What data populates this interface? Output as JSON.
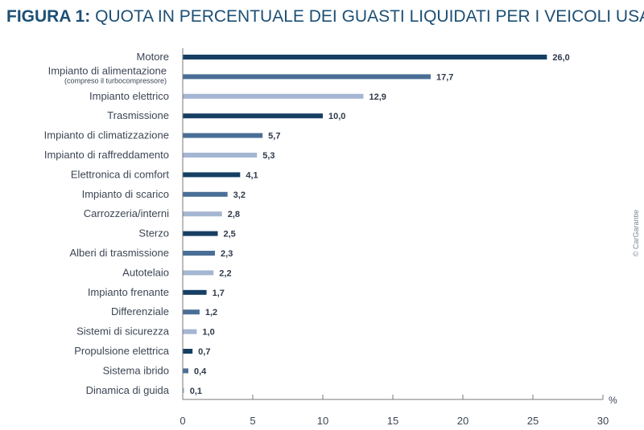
{
  "header": {
    "figure_label": "FIGURA 1:",
    "title": "QUOTA IN PERCENTUALE DEI GUASTI LIQUIDATI PER I VEICOLI USATI"
  },
  "credit": "© CarGarantie",
  "colors": {
    "title": "#1c4f74",
    "bar_dark": "#163f63",
    "bar_mid": "#4a6f96",
    "bar_light": "#a4b6d1",
    "axis": "#7a7a7a"
  },
  "chart_data": {
    "type": "bar",
    "orientation": "horizontal",
    "title": "QUOTA IN PERCENTUALE DEI GUASTI LIQUIDATI PER I VEICOLI USATI",
    "xlabel": "%",
    "ylabel": "",
    "xlim": [
      0,
      30
    ],
    "xticks": [
      0,
      5,
      10,
      15,
      20,
      25,
      30
    ],
    "grid": false,
    "categories": [
      "Motore",
      "Impianto di alimentazione",
      "Impianto elettrico",
      "Trasmissione",
      "Impianto di climatizzazione",
      "Impianto di raffreddamento",
      "Elettronica di comfort",
      "Impianto di scarico",
      "Carrozzeria/interni",
      "Sterzo",
      "Alberi di trasmissione",
      "Autotelaio",
      "Impianto frenante",
      "Differenziale",
      "Sistemi di sicurezza",
      "Propulsione elettrica",
      "Sistema ibrido",
      "Dinamica di guida"
    ],
    "category_notes": [
      "",
      "(compreso il turbocompressore)",
      "",
      "",
      "",
      "",
      "",
      "",
      "",
      "",
      "",
      "",
      "",
      "",
      "",
      "",
      "",
      ""
    ],
    "values": [
      26.0,
      17.7,
      12.9,
      10.0,
      5.7,
      5.3,
      4.1,
      3.2,
      2.8,
      2.5,
      2.3,
      2.2,
      1.7,
      1.2,
      1.0,
      0.7,
      0.4,
      0.1
    ],
    "value_labels": [
      "26,0",
      "17,7",
      "12,9",
      "10,0",
      "5,7",
      "5,3",
      "4,1",
      "3,2",
      "2,8",
      "2,5",
      "2,3",
      "2,2",
      "1,7",
      "1,2",
      "1,0",
      "0,7",
      "0,4",
      "0,1"
    ],
    "tick_labels": [
      "0",
      "5",
      "10",
      "15",
      "20",
      "25",
      "30"
    ]
  }
}
